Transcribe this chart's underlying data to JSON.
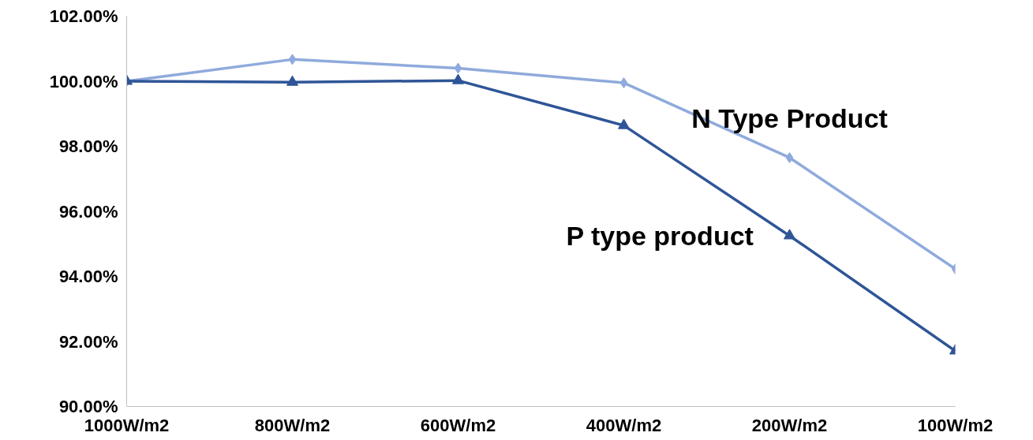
{
  "chart_data": {
    "type": "line",
    "categories": [
      "1000W/m2",
      "800W/m2",
      "600W/m2",
      "400W/m2",
      "200W/m2",
      "100W/m2"
    ],
    "series": [
      {
        "name": "N Type Product",
        "color": "#8faadc",
        "marker": "diamond",
        "values": [
          100.0,
          100.67,
          100.4,
          99.95,
          97.65,
          94.23
        ]
      },
      {
        "name": "P type product",
        "color": "#2f5597",
        "marker": "triangle",
        "values": [
          100.0,
          99.97,
          100.02,
          98.64,
          95.25,
          91.71
        ]
      }
    ],
    "ylim": [
      90,
      102
    ],
    "yticks": [
      {
        "value": 90,
        "label": "90.00%"
      },
      {
        "value": 92,
        "label": "92.00%"
      },
      {
        "value": 94,
        "label": "94.00%"
      },
      {
        "value": 96,
        "label": "96.00%"
      },
      {
        "value": 98,
        "label": "98.00%"
      },
      {
        "value": 100,
        "label": "100.00%"
      },
      {
        "value": 102,
        "label": "102.00%"
      }
    ],
    "grid": false,
    "legend": false,
    "line_style": "solid"
  }
}
